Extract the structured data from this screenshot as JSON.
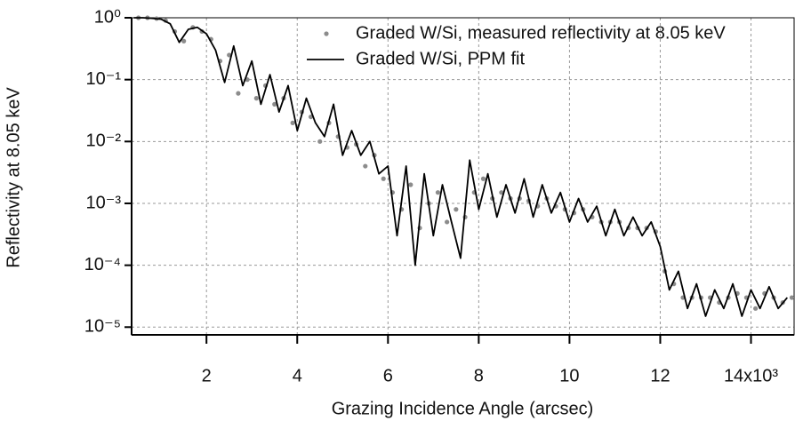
{
  "chart_data": {
    "type": "line",
    "xlabel": "Grazing Incidence Angle (arcsec)",
    "ylabel": "Reflectivity at 8.05 keV",
    "xlim": [
      350,
      14950
    ],
    "ylim": [
      7.5e-06,
      1
    ],
    "ylog": true,
    "grid": true,
    "legend": "top-right",
    "xticks": [
      {
        "value": 2000,
        "label": "2"
      },
      {
        "value": 4000,
        "label": "4"
      },
      {
        "value": 6000,
        "label": "6"
      },
      {
        "value": 8000,
        "label": "8"
      },
      {
        "value": 10000,
        "label": "10"
      },
      {
        "value": 12000,
        "label": "12"
      },
      {
        "value": 14000,
        "label": "14x10³"
      }
    ],
    "yticks": [
      {
        "value": 1,
        "label": "10⁰"
      },
      {
        "value": 0.1,
        "label": "10⁻¹"
      },
      {
        "value": 0.01,
        "label": "10⁻²"
      },
      {
        "value": 0.001,
        "label": "10⁻³"
      },
      {
        "value": 0.0001,
        "label": "10⁻⁴"
      },
      {
        "value": 1e-05,
        "label": "10⁻⁵"
      }
    ],
    "series": [
      {
        "name": "Graded W/Si, measured reflectivity at 8.05 keV",
        "color": "#8c8c8c",
        "type": "scatter",
        "x": [
          500,
          700,
          900,
          1100,
          1300,
          1500,
          1700,
          1900,
          2100,
          2300,
          2500,
          2700,
          2900,
          3100,
          3300,
          3500,
          3700,
          3900,
          4100,
          4300,
          4500,
          4700,
          4900,
          5100,
          5300,
          5500,
          5700,
          5900,
          6100,
          6300,
          6500,
          6700,
          6900,
          7100,
          7300,
          7500,
          7700,
          7900,
          8100,
          8300,
          8500,
          8700,
          8900,
          9100,
          9300,
          9500,
          9700,
          9900,
          10100,
          10300,
          10500,
          10700,
          10900,
          11100,
          11300,
          11500,
          11700,
          11900,
          12100,
          12300,
          12500,
          12700,
          12900,
          13100,
          13300,
          13500,
          13700,
          13900,
          14100,
          14300,
          14500,
          14700,
          14900
        ],
        "values": [
          1,
          1,
          0.97,
          0.9,
          0.6,
          0.42,
          0.7,
          0.6,
          0.45,
          0.2,
          0.25,
          0.06,
          0.1,
          0.05,
          0.08,
          0.04,
          0.05,
          0.02,
          0.03,
          0.025,
          0.01,
          0.02,
          0.012,
          0.008,
          0.009,
          0.004,
          0.006,
          0.0025,
          0.0015,
          0.0008,
          0.002,
          0.0004,
          0.001,
          0.0015,
          0.0005,
          0.0008,
          0.0006,
          0.0015,
          0.0025,
          0.0012,
          0.0015,
          0.0012,
          0.0012,
          0.0011,
          0.0009,
          0.0012,
          0.0009,
          0.0008,
          0.0007,
          0.0008,
          0.0006,
          0.0005,
          0.0005,
          0.0005,
          0.0004,
          0.0004,
          0.0004,
          0.00035,
          8e-05,
          5e-05,
          3e-05,
          3e-05,
          3e-05,
          3e-05,
          2.5e-05,
          3e-05,
          3.5e-05,
          3e-05,
          2e-05,
          3.5e-05,
          3e-05,
          2.5e-05,
          3e-05
        ]
      },
      {
        "name": "Graded W/Si, PPM fit",
        "color": "#000000",
        "type": "line",
        "x": [
          400,
          600,
          800,
          1000,
          1200,
          1400,
          1600,
          1800,
          2000,
          2200,
          2400,
          2600,
          2800,
          3000,
          3200,
          3400,
          3600,
          3800,
          4000,
          4200,
          4400,
          4600,
          4800,
          5000,
          5200,
          5400,
          5600,
          5800,
          6000,
          6200,
          6400,
          6600,
          6800,
          7000,
          7200,
          7400,
          7600,
          7800,
          8000,
          8200,
          8400,
          8600,
          8800,
          9000,
          9200,
          9400,
          9600,
          9800,
          10000,
          10200,
          10400,
          10600,
          10800,
          11000,
          11200,
          11400,
          11600,
          11800,
          12000,
          12200,
          12400,
          12600,
          12800,
          13000,
          13200,
          13400,
          13600,
          13800,
          14000,
          14200,
          14400,
          14600,
          14800
        ],
        "values": [
          1,
          1,
          0.98,
          0.95,
          0.8,
          0.4,
          0.65,
          0.7,
          0.55,
          0.3,
          0.09,
          0.35,
          0.08,
          0.2,
          0.04,
          0.12,
          0.03,
          0.08,
          0.015,
          0.05,
          0.02,
          0.012,
          0.04,
          0.006,
          0.015,
          0.006,
          0.01,
          0.003,
          0.004,
          0.0003,
          0.004,
          0.0001,
          0.003,
          0.0003,
          0.002,
          0.0005,
          0.00013,
          0.005,
          0.0008,
          0.003,
          0.0006,
          0.002,
          0.0007,
          0.0025,
          0.0006,
          0.002,
          0.0007,
          0.0015,
          0.0005,
          0.0012,
          0.0005,
          0.0009,
          0.0003,
          0.0008,
          0.0003,
          0.0006,
          0.0003,
          0.0005,
          0.0002,
          4e-05,
          8e-05,
          2e-05,
          5e-05,
          1.5e-05,
          4e-05,
          2e-05,
          5e-05,
          1.5e-05,
          4e-05,
          2e-05,
          4.5e-05,
          2e-05,
          3e-05
        ]
      }
    ]
  }
}
